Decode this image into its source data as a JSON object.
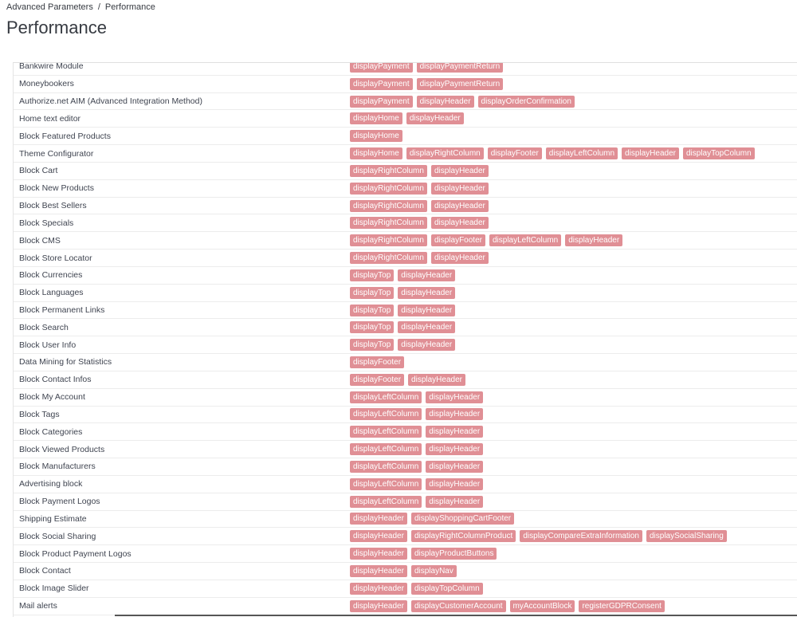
{
  "breadcrumb": {
    "parent": "Advanced Parameters",
    "separator": "/",
    "current": "Performance"
  },
  "page_title": "Performance",
  "colors": {
    "hook_badge": "#e08f95",
    "text": "#363a41"
  },
  "modules": [
    {
      "name": "Bankwire Module",
      "hooks": [
        "displayPayment",
        "displayPaymentReturn"
      ]
    },
    {
      "name": "Moneybookers",
      "hooks": [
        "displayPayment",
        "displayPaymentReturn"
      ]
    },
    {
      "name": "Authorize.net AIM (Advanced Integration Method)",
      "hooks": [
        "displayPayment",
        "displayHeader",
        "displayOrderConfirmation"
      ]
    },
    {
      "name": "Home text editor",
      "hooks": [
        "displayHome",
        "displayHeader"
      ]
    },
    {
      "name": "Block Featured Products",
      "hooks": [
        "displayHome"
      ]
    },
    {
      "name": "Theme Configurator",
      "hooks": [
        "displayHome",
        "displayRightColumn",
        "displayFooter",
        "displayLeftColumn",
        "displayHeader",
        "displayTopColumn"
      ]
    },
    {
      "name": "Block Cart",
      "hooks": [
        "displayRightColumn",
        "displayHeader"
      ]
    },
    {
      "name": "Block New Products",
      "hooks": [
        "displayRightColumn",
        "displayHeader"
      ]
    },
    {
      "name": "Block Best Sellers",
      "hooks": [
        "displayRightColumn",
        "displayHeader"
      ]
    },
    {
      "name": "Block Specials",
      "hooks": [
        "displayRightColumn",
        "displayHeader"
      ]
    },
    {
      "name": "Block CMS",
      "hooks": [
        "displayRightColumn",
        "displayFooter",
        "displayLeftColumn",
        "displayHeader"
      ]
    },
    {
      "name": "Block Store Locator",
      "hooks": [
        "displayRightColumn",
        "displayHeader"
      ]
    },
    {
      "name": "Block Currencies",
      "hooks": [
        "displayTop",
        "displayHeader"
      ]
    },
    {
      "name": "Block Languages",
      "hooks": [
        "displayTop",
        "displayHeader"
      ]
    },
    {
      "name": "Block Permanent Links",
      "hooks": [
        "displayTop",
        "displayHeader"
      ]
    },
    {
      "name": "Block Search",
      "hooks": [
        "displayTop",
        "displayHeader"
      ]
    },
    {
      "name": "Block User Info",
      "hooks": [
        "displayTop",
        "displayHeader"
      ]
    },
    {
      "name": "Data Mining for Statistics",
      "hooks": [
        "displayFooter"
      ]
    },
    {
      "name": "Block Contact Infos",
      "hooks": [
        "displayFooter",
        "displayHeader"
      ]
    },
    {
      "name": "Block My Account",
      "hooks": [
        "displayLeftColumn",
        "displayHeader"
      ]
    },
    {
      "name": "Block Tags",
      "hooks": [
        "displayLeftColumn",
        "displayHeader"
      ]
    },
    {
      "name": "Block Categories",
      "hooks": [
        "displayLeftColumn",
        "displayHeader"
      ]
    },
    {
      "name": "Block Viewed Products",
      "hooks": [
        "displayLeftColumn",
        "displayHeader"
      ]
    },
    {
      "name": "Block Manufacturers",
      "hooks": [
        "displayLeftColumn",
        "displayHeader"
      ]
    },
    {
      "name": "Advertising block",
      "hooks": [
        "displayLeftColumn",
        "displayHeader"
      ]
    },
    {
      "name": "Block Payment Logos",
      "hooks": [
        "displayLeftColumn",
        "displayHeader"
      ]
    },
    {
      "name": "Shipping Estimate",
      "hooks": [
        "displayHeader",
        "displayShoppingCartFooter"
      ]
    },
    {
      "name": "Block Social Sharing",
      "hooks": [
        "displayHeader",
        "displayRightColumnProduct",
        "displayCompareExtraInformation",
        "displaySocialSharing"
      ]
    },
    {
      "name": "Block Product Payment Logos",
      "hooks": [
        "displayHeader",
        "displayProductButtons"
      ]
    },
    {
      "name": "Block Contact",
      "hooks": [
        "displayHeader",
        "displayNav"
      ]
    },
    {
      "name": "Block Image Slider",
      "hooks": [
        "displayHeader",
        "displayTopColumn"
      ]
    },
    {
      "name": "Mail alerts",
      "hooks": [
        "displayHeader",
        "displayCustomerAccount",
        "myAccountBlock",
        "registerGDPRConsent"
      ]
    }
  ]
}
